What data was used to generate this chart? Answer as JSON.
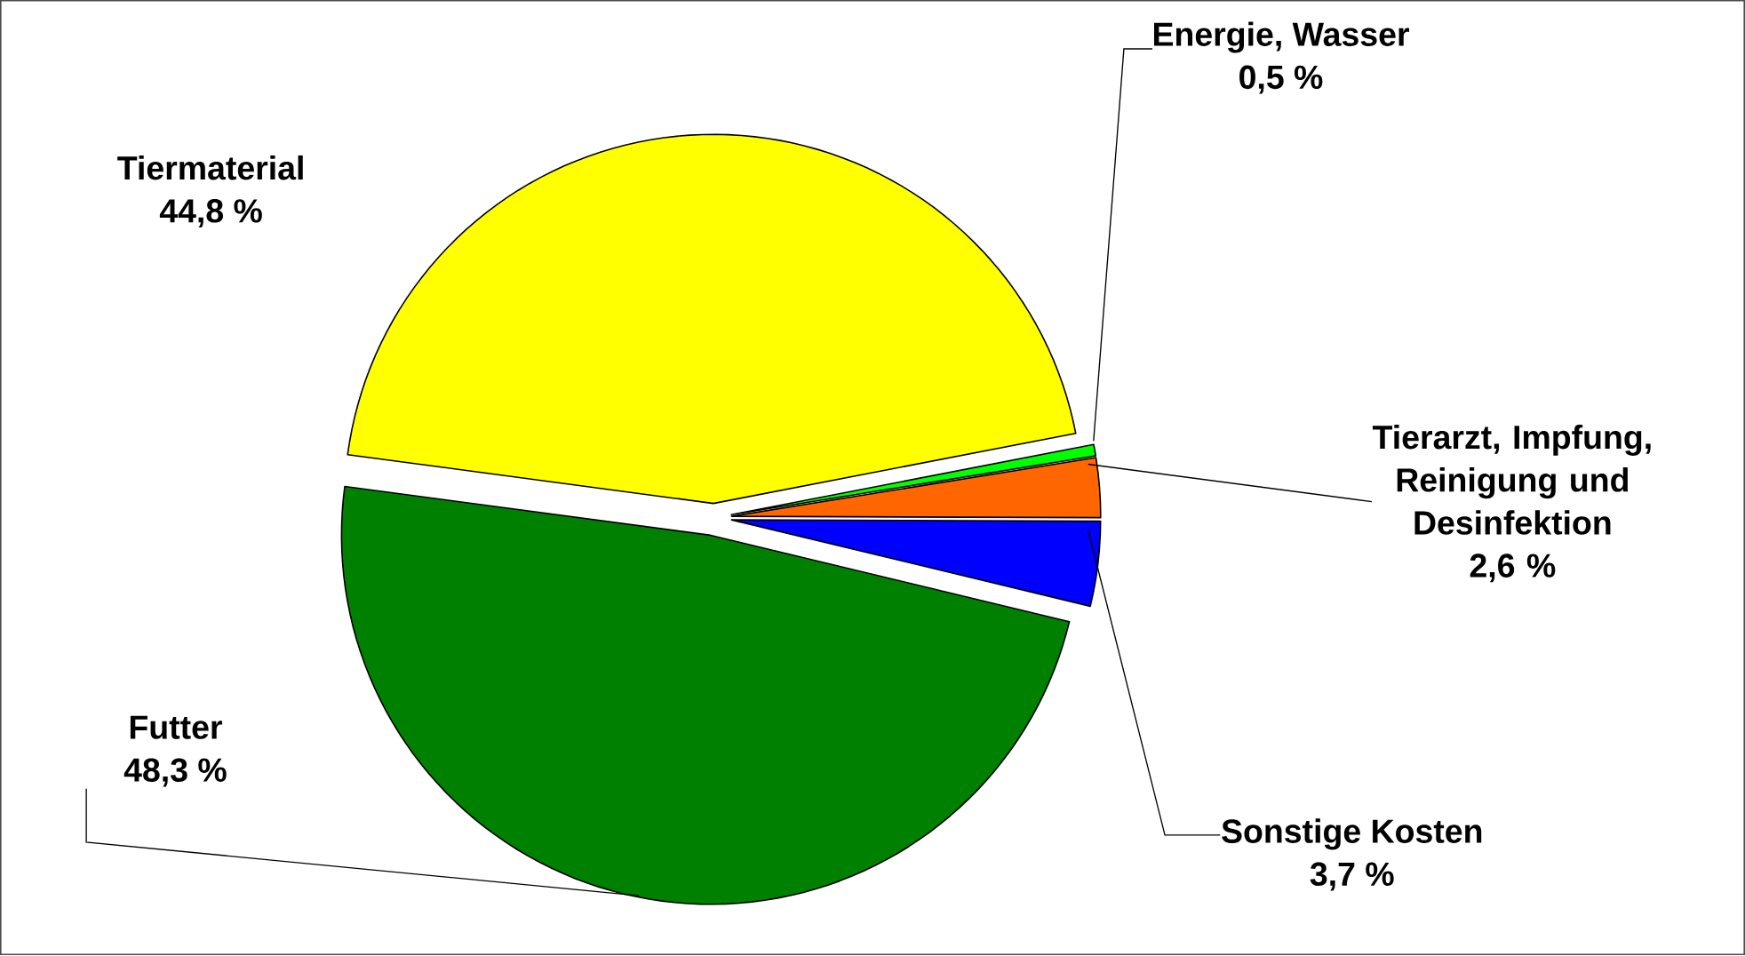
{
  "chart_data": {
    "type": "pie",
    "categories": [
      "Tiermaterial",
      "Energie, Wasser",
      "Tierarzt, Impfung, Reinigung und Desinfektion",
      "Sonstige Kosten",
      "Futter"
    ],
    "values": [
      44.8,
      0.5,
      2.6,
      3.7,
      48.3
    ],
    "colors": [
      "#ffff00",
      "#00ff00",
      "#ff6600",
      "#0000ff",
      "#008000"
    ],
    "value_labels": [
      "44,8 %",
      "0,5 %",
      "2,6 %",
      "3,7 %",
      "48,3 %"
    ]
  }
}
